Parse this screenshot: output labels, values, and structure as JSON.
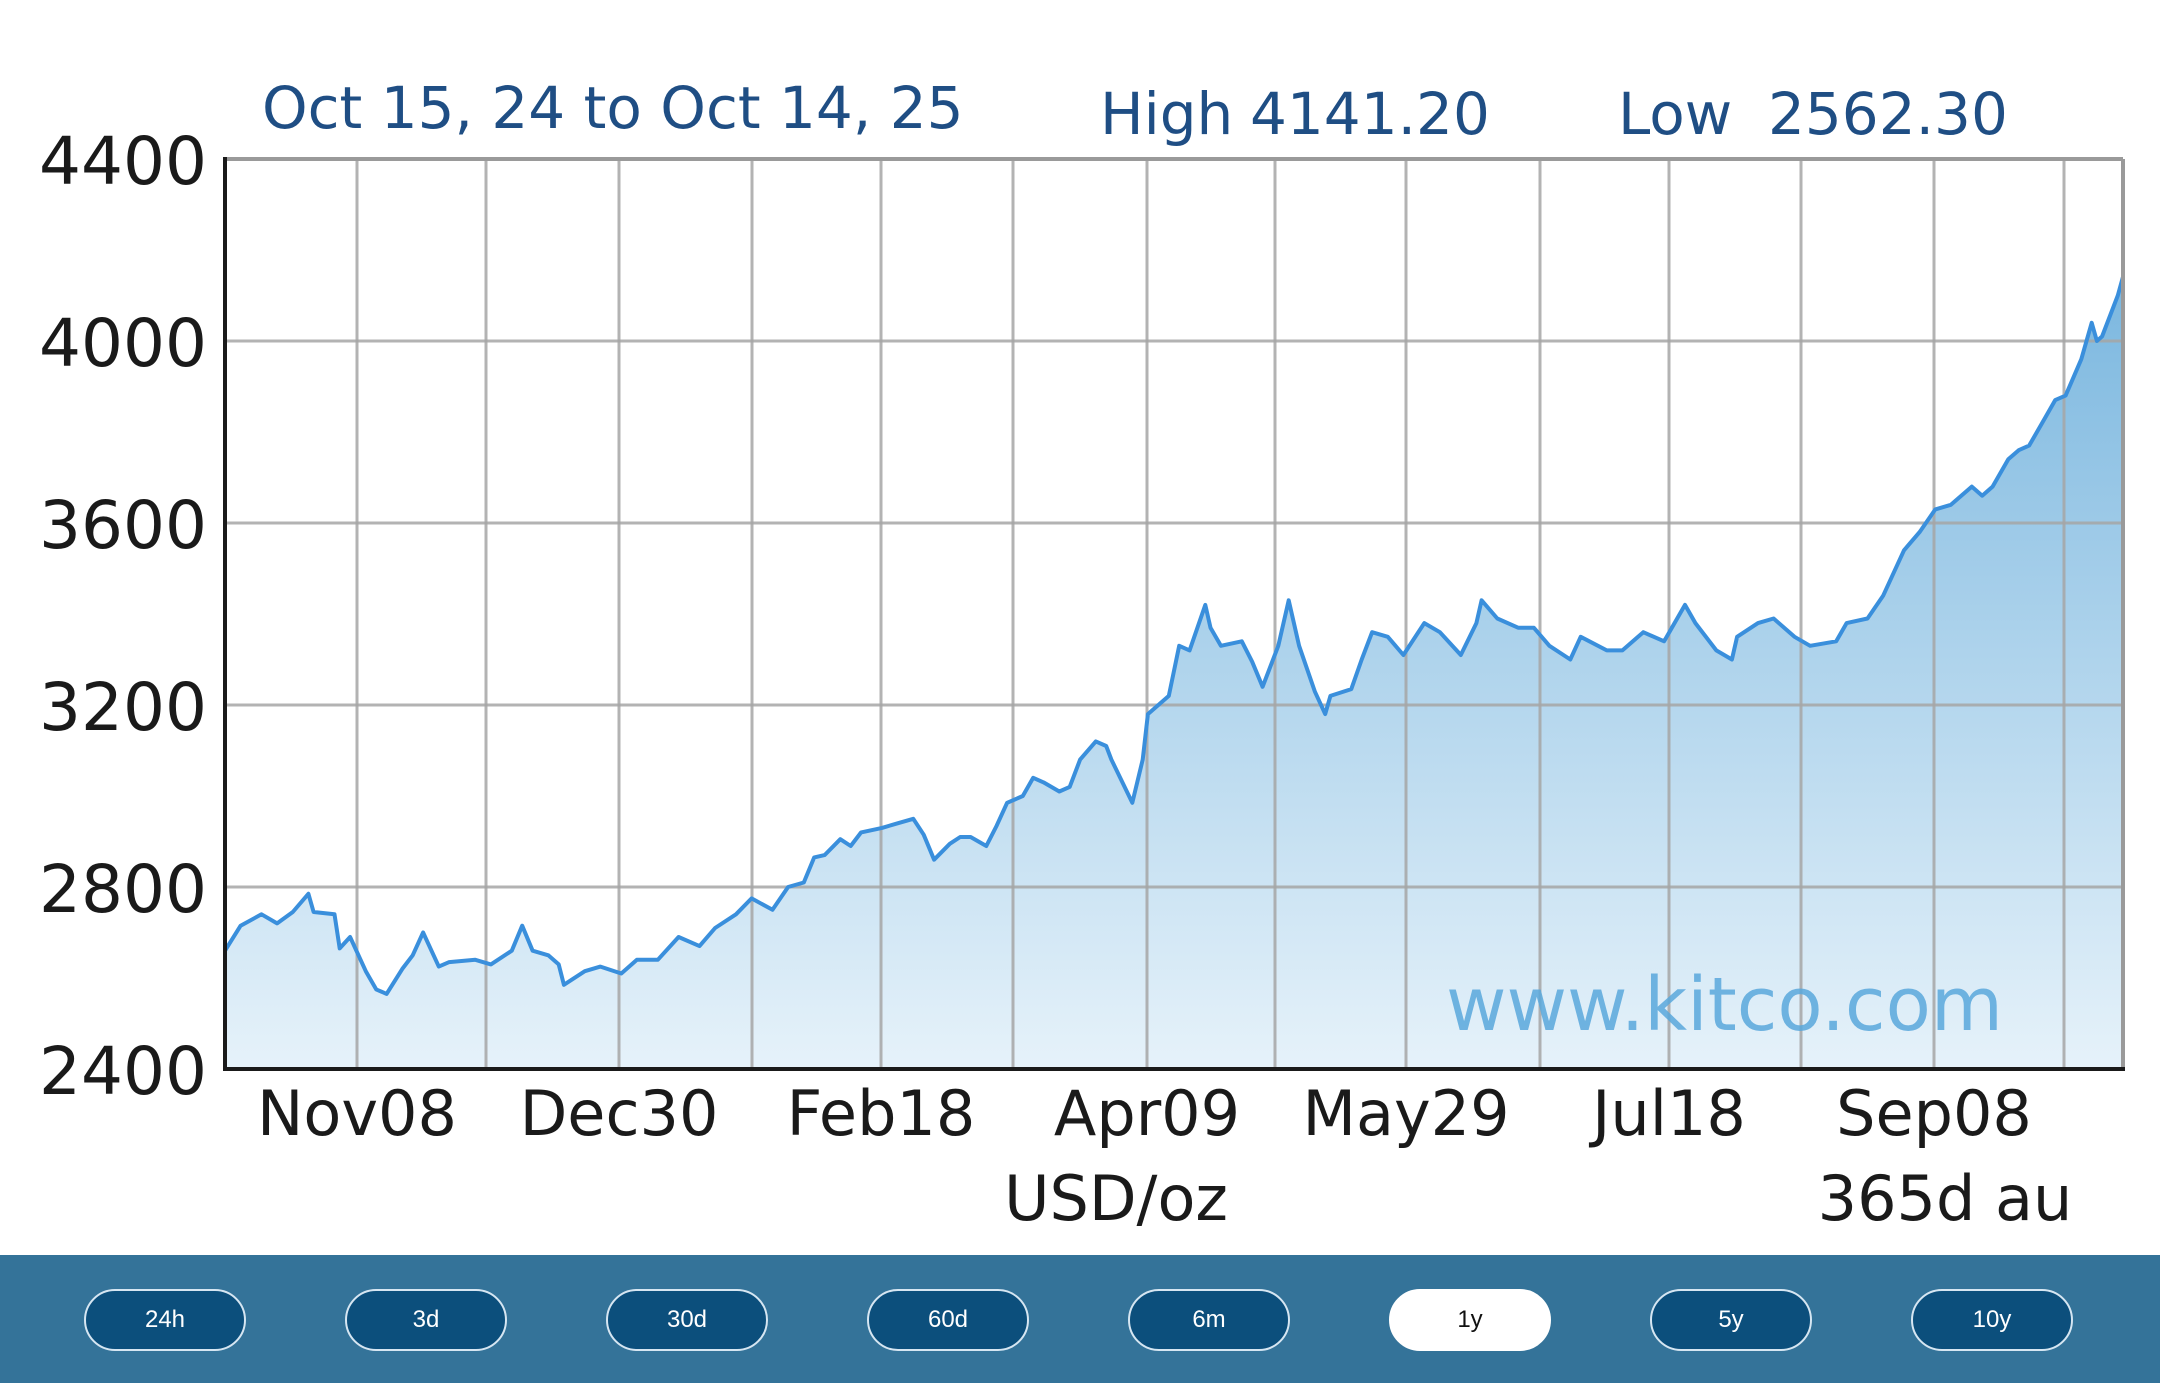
{
  "chart_data": {
    "type": "area",
    "header": {
      "date_range": "Oct 15, 24 to Oct 14, 25",
      "high_label": "High",
      "high_value": "4141.20",
      "low_label": "Low",
      "low_value": "2562.30"
    },
    "ylim": [
      2400,
      4400
    ],
    "yticks": [
      "4400",
      "4000",
      "3600",
      "3200",
      "2800",
      "2400"
    ],
    "xticks": [
      "Nov08",
      "Dec30",
      "Feb18",
      "Apr09",
      "May29",
      "Jul18",
      "Sep08"
    ],
    "unit_label": "USD/oz",
    "period_label": "365d au",
    "watermark": "www.kitco.com",
    "grid": true,
    "line_color": "#3a8fdc",
    "fill_color_top": "#7bb7df",
    "fill_color_bottom": "#e6f2fa",
    "series": [
      {
        "points": [
          [
            "Oct15",
            2660
          ],
          [
            "Oct18",
            2715
          ],
          [
            "Oct22",
            2740
          ],
          [
            "Oct25",
            2720
          ],
          [
            "Oct28",
            2745
          ],
          [
            "Oct31",
            2785
          ],
          [
            "Nov01",
            2745
          ],
          [
            "Nov05",
            2740
          ],
          [
            "Nov06",
            2665
          ],
          [
            "Nov08",
            2690
          ],
          [
            "Nov11",
            2615
          ],
          [
            "Nov13",
            2575
          ],
          [
            "Nov15",
            2565
          ],
          [
            "Nov18",
            2620
          ],
          [
            "Nov20",
            2650
          ],
          [
            "Nov22",
            2700
          ],
          [
            "Nov25",
            2625
          ],
          [
            "Nov27",
            2635
          ],
          [
            "Dec02",
            2640
          ],
          [
            "Dec05",
            2630
          ],
          [
            "Dec09",
            2660
          ],
          [
            "Dec11",
            2715
          ],
          [
            "Dec13",
            2660
          ],
          [
            "Dec16",
            2650
          ],
          [
            "Dec18",
            2630
          ],
          [
            "Dec19",
            2585
          ],
          [
            "Dec23",
            2615
          ],
          [
            "Dec26",
            2625
          ],
          [
            "Dec30",
            2610
          ],
          [
            "Jan02",
            2640
          ],
          [
            "Jan06",
            2640
          ],
          [
            "Jan10",
            2690
          ],
          [
            "Jan14",
            2670
          ],
          [
            "Jan17",
            2710
          ],
          [
            "Jan21",
            2740
          ],
          [
            "Jan24",
            2775
          ],
          [
            "Jan28",
            2750
          ],
          [
            "Jan31",
            2800
          ],
          [
            "Feb03",
            2810
          ],
          [
            "Feb05",
            2865
          ],
          [
            "Feb07",
            2870
          ],
          [
            "Feb10",
            2905
          ],
          [
            "Feb12",
            2890
          ],
          [
            "Feb14",
            2920
          ],
          [
            "Feb18",
            2930
          ],
          [
            "Feb21",
            2940
          ],
          [
            "Feb24",
            2950
          ],
          [
            "Feb26",
            2915
          ],
          [
            "Feb28",
            2860
          ],
          [
            "Mar03",
            2895
          ],
          [
            "Mar05",
            2910
          ],
          [
            "Mar07",
            2910
          ],
          [
            "Mar10",
            2890
          ],
          [
            "Mar12",
            2935
          ],
          [
            "Mar14",
            2985
          ],
          [
            "Mar17",
            3000
          ],
          [
            "Mar19",
            3040
          ],
          [
            "Mar21",
            3030
          ],
          [
            "Mar24",
            3010
          ],
          [
            "Mar26",
            3020
          ],
          [
            "Mar28",
            3080
          ],
          [
            "Mar31",
            3120
          ],
          [
            "Apr02",
            3110
          ],
          [
            "Apr03",
            3080
          ],
          [
            "Apr07",
            2985
          ],
          [
            "Apr09",
            3080
          ],
          [
            "Apr10",
            3180
          ],
          [
            "Apr14",
            3220
          ],
          [
            "Apr16",
            3330
          ],
          [
            "Apr18",
            3320
          ],
          [
            "Apr21",
            3420
          ],
          [
            "Apr22",
            3370
          ],
          [
            "Apr24",
            3330
          ],
          [
            "Apr28",
            3340
          ],
          [
            "Apr30",
            3295
          ],
          [
            "May02",
            3240
          ],
          [
            "May05",
            3330
          ],
          [
            "May07",
            3430
          ],
          [
            "May09",
            3330
          ],
          [
            "May12",
            3230
          ],
          [
            "May14",
            3180
          ],
          [
            "May15",
            3220
          ],
          [
            "May19",
            3235
          ],
          [
            "May21",
            3300
          ],
          [
            "May23",
            3360
          ],
          [
            "May26",
            3350
          ],
          [
            "May29",
            3310
          ],
          [
            "Jun02",
            3380
          ],
          [
            "Jun05",
            3360
          ],
          [
            "Jun09",
            3310
          ],
          [
            "Jun12",
            3380
          ],
          [
            "Jun13",
            3430
          ],
          [
            "Jun16",
            3390
          ],
          [
            "Jun20",
            3370
          ],
          [
            "Jun23",
            3370
          ],
          [
            "Jun26",
            3330
          ],
          [
            "Jun30",
            3300
          ],
          [
            "Jul02",
            3350
          ],
          [
            "Jul07",
            3320
          ],
          [
            "Jul10",
            3320
          ],
          [
            "Jul14",
            3360
          ],
          [
            "Jul18",
            3340
          ],
          [
            "Jul22",
            3420
          ],
          [
            "Jul24",
            3380
          ],
          [
            "Jul28",
            3320
          ],
          [
            "Jul31",
            3300
          ],
          [
            "Aug01",
            3350
          ],
          [
            "Aug05",
            3380
          ],
          [
            "Aug08",
            3390
          ],
          [
            "Aug12",
            3350
          ],
          [
            "Aug15",
            3330
          ],
          [
            "Aug20",
            3340
          ],
          [
            "Aug22",
            3380
          ],
          [
            "Aug26",
            3390
          ],
          [
            "Aug29",
            3440
          ],
          [
            "Sep02",
            3540
          ],
          [
            "Sep05",
            3580
          ],
          [
            "Sep08",
            3630
          ],
          [
            "Sep11",
            3640
          ],
          [
            "Sep15",
            3680
          ],
          [
            "Sep17",
            3660
          ],
          [
            "Sep19",
            3680
          ],
          [
            "Sep22",
            3740
          ],
          [
            "Sep24",
            3760
          ],
          [
            "Sep26",
            3770
          ],
          [
            "Sep29",
            3830
          ],
          [
            "Oct01",
            3870
          ],
          [
            "Oct03",
            3880
          ],
          [
            "Oct06",
            3960
          ],
          [
            "Oct08",
            4040
          ],
          [
            "Oct09",
            4000
          ],
          [
            "Oct10",
            4010
          ],
          [
            "Oct13",
            4100
          ],
          [
            "Oct14",
            4141
          ]
        ]
      }
    ]
  },
  "range_buttons": {
    "b0": "24h",
    "b1": "3d",
    "b2": "30d",
    "b3": "60d",
    "b4": "6m",
    "b5": "1y",
    "b6": "5y",
    "b7": "10y",
    "active": "1y"
  }
}
